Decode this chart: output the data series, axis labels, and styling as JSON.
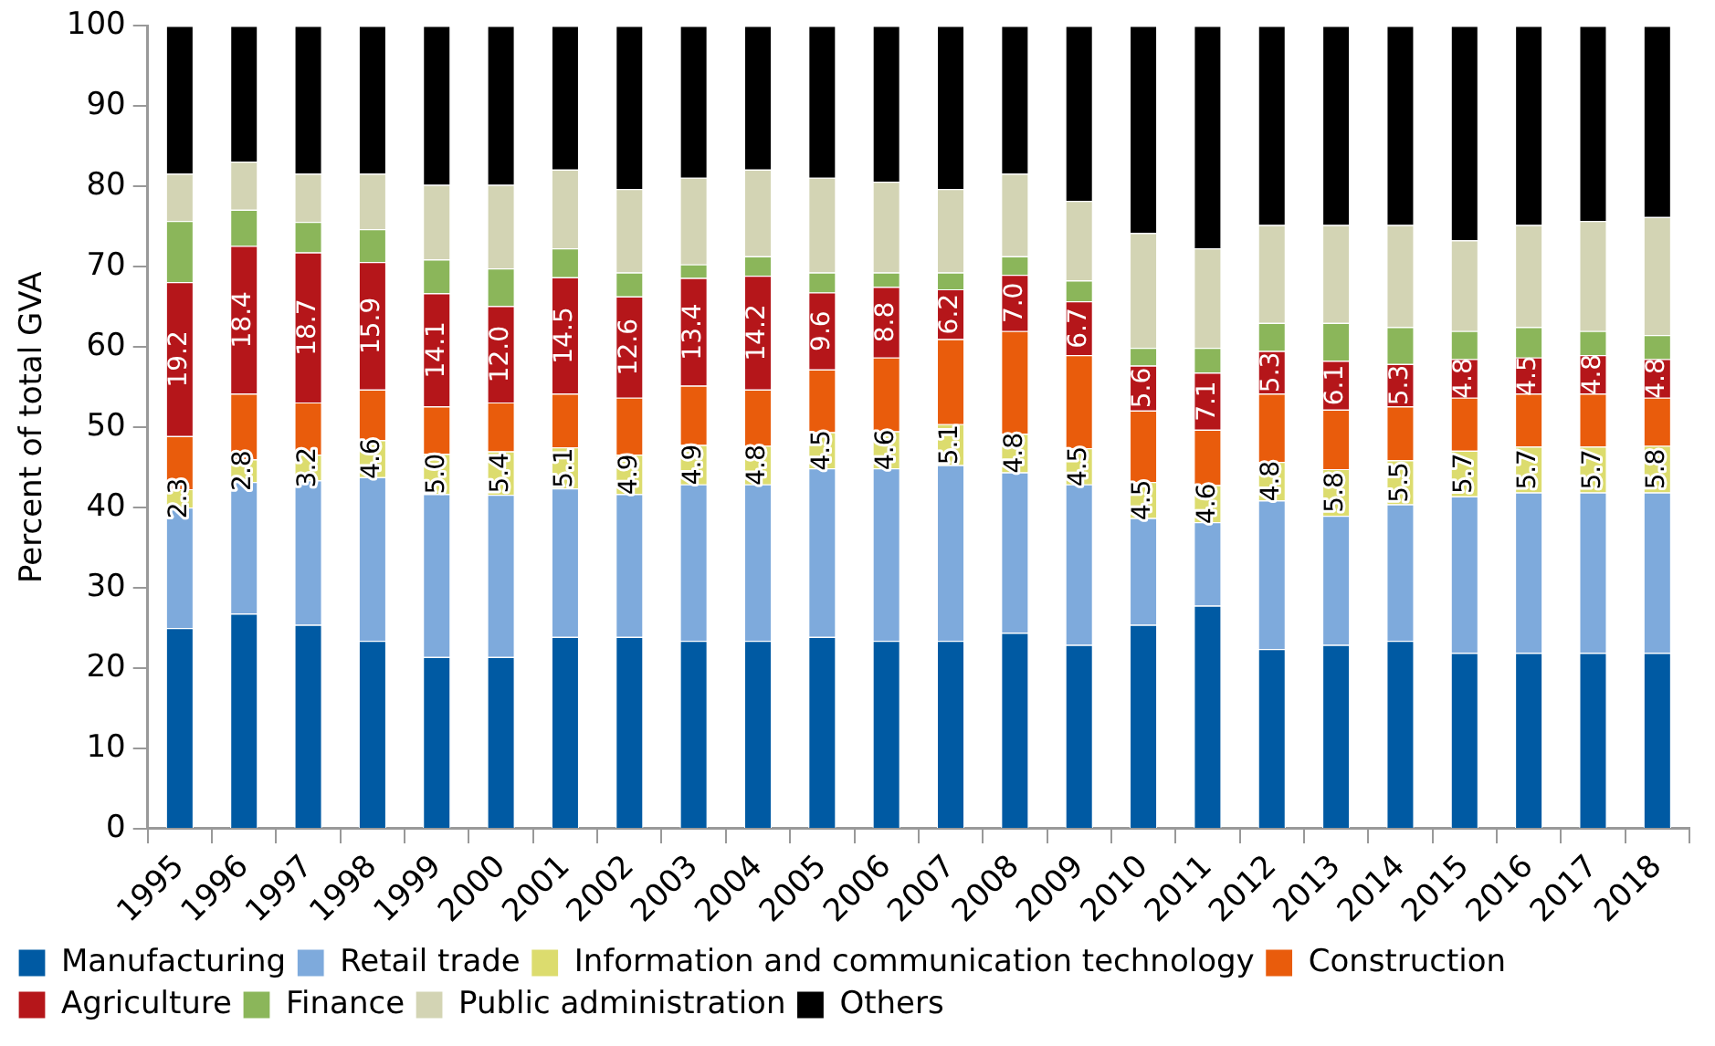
{
  "chart_data": {
    "type": "bar",
    "stacked": true,
    "ylabel": "Percent of total GVA",
    "categories": [
      "1995",
      "1996",
      "1997",
      "1998",
      "1999",
      "2000",
      "2001",
      "2002",
      "2003",
      "2004",
      "2005",
      "2006",
      "2007",
      "2008",
      "2009",
      "2010",
      "2011",
      "2012",
      "2013",
      "2014",
      "2015",
      "2016",
      "2017",
      "2018"
    ],
    "ylim": [
      0,
      100
    ],
    "yticks": [
      0,
      10,
      20,
      30,
      40,
      50,
      60,
      70,
      80,
      90,
      100
    ],
    "grid": false,
    "legend": "bottom",
    "series": [
      {
        "name": "Manufacturing",
        "color": "#005aa3",
        "values": [
          25.0,
          26.8,
          25.4,
          23.4,
          21.4,
          21.4,
          23.9,
          23.9,
          23.4,
          23.4,
          23.9,
          23.4,
          23.4,
          24.4,
          22.9,
          25.4,
          27.8,
          22.4,
          22.9,
          23.4,
          21.9,
          21.9,
          21.9,
          21.9
        ]
      },
      {
        "name": "Retail trade",
        "color": "#7eaadc",
        "values": [
          15.0,
          16.4,
          18.0,
          20.4,
          20.3,
          20.2,
          18.5,
          17.8,
          19.5,
          19.5,
          21.0,
          21.5,
          21.9,
          20.0,
          20.0,
          13.3,
          10.4,
          18.5,
          16.1,
          17.0,
          19.5,
          20.0,
          20.0,
          20.0
        ]
      },
      {
        "name": "Information and communication technology",
        "color": "#dcdc6e",
        "values": [
          2.3,
          2.8,
          3.2,
          4.6,
          5.0,
          5.4,
          5.1,
          4.9,
          4.9,
          4.8,
          4.5,
          4.6,
          5.1,
          4.8,
          4.5,
          4.5,
          4.6,
          4.8,
          5.8,
          5.5,
          5.7,
          5.7,
          5.7,
          5.8
        ],
        "value_labels": [
          "2.3",
          "2.8",
          "3.2",
          "4.6",
          "5.0",
          "5.4",
          "5.1",
          "4.9",
          "4.9",
          "4.8",
          "4.5",
          "4.6",
          "5.1",
          "4.8",
          "4.5",
          "4.5",
          "4.6",
          "4.8",
          "5.8",
          "5.5",
          "5.7",
          "5.7",
          "5.7",
          "5.8"
        ]
      },
      {
        "name": "Construction",
        "color": "#e95c0c",
        "values": [
          6.6,
          8.2,
          6.5,
          6.3,
          5.9,
          6.1,
          6.7,
          7.1,
          7.4,
          7.0,
          7.8,
          9.2,
          10.6,
          12.8,
          11.6,
          8.9,
          6.9,
          8.5,
          7.4,
          6.7,
          6.6,
          6.6,
          6.6,
          6.0
        ]
      },
      {
        "name": "Agriculture",
        "color": "#b5161a",
        "values": [
          19.2,
          18.4,
          18.7,
          15.9,
          14.1,
          12.0,
          14.5,
          12.6,
          13.4,
          14.2,
          9.6,
          8.8,
          6.2,
          7.0,
          6.7,
          5.6,
          7.1,
          5.3,
          6.1,
          5.3,
          4.8,
          4.5,
          4.8,
          4.8
        ],
        "value_labels": [
          "19.2",
          "18.4",
          "18.7",
          "15.9",
          "14.1",
          "12.0",
          "14.5",
          "12.6",
          "13.4",
          "14.2",
          "9.6",
          "8.8",
          "6.2",
          "7.0",
          "6.7",
          "5.6",
          "7.1",
          "5.3",
          "6.1",
          "5.3",
          "4.8",
          "4.5",
          "4.8",
          "4.8"
        ]
      },
      {
        "name": "Finance",
        "color": "#8bb65a",
        "values": [
          7.6,
          4.5,
          3.8,
          4.1,
          4.2,
          4.7,
          3.6,
          3.0,
          1.7,
          2.4,
          2.5,
          1.8,
          2.1,
          2.3,
          2.6,
          2.2,
          3.1,
          3.5,
          4.7,
          4.6,
          3.5,
          3.8,
          3.0,
          3.0
        ]
      },
      {
        "name": "Public administration",
        "color": "#d3d4b4",
        "values": [
          5.9,
          6.0,
          6.0,
          6.9,
          9.3,
          10.4,
          9.8,
          10.4,
          10.8,
          10.8,
          11.8,
          11.3,
          10.4,
          10.3,
          9.9,
          14.3,
          12.4,
          12.2,
          12.2,
          12.7,
          11.3,
          12.7,
          13.7,
          14.7
        ]
      },
      {
        "name": "Others",
        "color": "#000000",
        "values": [
          18.4,
          16.9,
          18.4,
          18.4,
          19.8,
          19.8,
          17.9,
          20.3,
          18.9,
          17.9,
          18.9,
          19.4,
          20.3,
          18.4,
          21.8,
          25.8,
          27.7,
          24.8,
          24.8,
          24.8,
          26.7,
          24.8,
          24.3,
          23.8
        ]
      }
    ]
  }
}
